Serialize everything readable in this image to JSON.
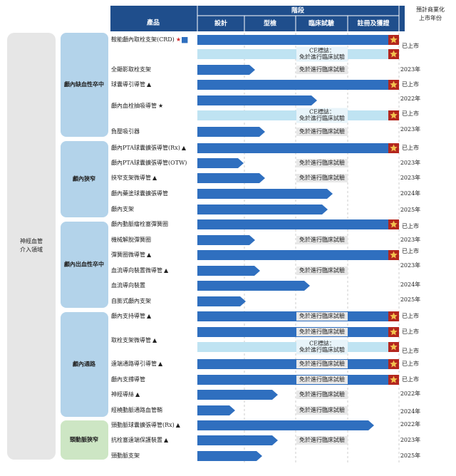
{
  "header": {
    "product": "產品",
    "stage": "階段",
    "stages": [
      "設計",
      "型檢",
      "臨床試驗",
      "註冊及獲證"
    ],
    "launch": "預計商業化上市年份"
  },
  "field": "神經血管介入領域",
  "categories": [
    "顱內缺血性卒中",
    "顱內狹窄",
    "顱內出血性卒中",
    "顱內通路",
    "頸動脈狹窄"
  ],
  "products": [
    {
      "name": "鞍能顱內取栓支架(CRD)",
      "marker": "★■",
      "notes": [
        [
          "CE標誌：",
          "免於進行臨床試驗"
        ]
      ],
      "years": [
        "已上市"
      ]
    },
    {
      "name": "全顯影取栓支架",
      "notes": [
        [
          "免於進行臨床試驗"
        ]
      ],
      "years": [
        "2023年"
      ]
    },
    {
      "name": "球囊導引導管",
      "marker": "▲",
      "years": [
        "已上市"
      ]
    },
    {
      "name": "顱內血栓抽吸導管",
      "marker": "★",
      "notes": [
        [
          "CE標誌：",
          "免於進行臨床試驗"
        ]
      ],
      "years": [
        "2022年",
        "已上市"
      ]
    },
    {
      "name": "負壓吸引器",
      "notes": [
        [
          "免於進行臨床試驗"
        ]
      ],
      "years": [
        "2023年"
      ]
    },
    {
      "name": "顱內PTA球囊擴張導管(Rx)",
      "marker": "▲",
      "years": [
        "已上市"
      ]
    },
    {
      "name": "顱內PTA球囊擴張導管(OTW)",
      "notes": [
        [
          "免於進行臨床試驗"
        ]
      ],
      "years": [
        "2023年"
      ]
    },
    {
      "name": "挾窄支架微導管",
      "marker": "▲",
      "notes": [
        [
          "免於進行臨床試驗"
        ]
      ],
      "years": [
        "2023年"
      ]
    },
    {
      "name": "顱內藥塗球囊擴張導管",
      "years": [
        "2024年"
      ]
    },
    {
      "name": "顱內支架",
      "years": [
        "2025年"
      ]
    },
    {
      "name": "顱內動脈瘤栓塞彈簧圈",
      "years": [
        "已上市"
      ]
    },
    {
      "name": "機械解脫彈簧圈",
      "notes": [
        [
          "免於進行臨床試驗"
        ]
      ],
      "years": [
        "2023年"
      ]
    },
    {
      "name": "彈簧圈微導管",
      "marker": "▲",
      "years": [
        "已上市"
      ]
    },
    {
      "name": "血流導向裝置微導管",
      "marker": "▲",
      "notes": [
        [
          "免於進行臨床試驗"
        ]
      ],
      "years": [
        "2023年"
      ]
    },
    {
      "name": "血流導向裝置",
      "years": [
        "2024年"
      ]
    },
    {
      "name": "自膨式顱內支架",
      "years": [
        "2025年"
      ]
    },
    {
      "name": "顱內支持導管",
      "marker": "▲",
      "notes": [
        [
          "免於進行臨床試驗"
        ]
      ],
      "years": [
        "已上市"
      ]
    },
    {
      "name": "取栓支架微導管",
      "marker": "▲",
      "notes": [
        [
          "免於進行臨床試驗"
        ],
        [
          "CE標誌：",
          "免於進行臨床試驗"
        ]
      ],
      "years": [
        "已上市",
        "已上市"
      ]
    },
    {
      "name": "遠端通路導引導管",
      "marker": "▲",
      "notes": [
        [
          "免於進行臨床試驗"
        ]
      ],
      "years": [
        "已上市"
      ]
    },
    {
      "name": "顱內支撐導管",
      "notes": [
        [
          "免於進行臨床試驗"
        ]
      ],
      "years": [
        "已上市"
      ]
    },
    {
      "name": "神經導絲",
      "marker": "▲",
      "notes": [
        [
          "免於進行臨床試驗"
        ]
      ],
      "years": [
        "2022年"
      ]
    },
    {
      "name": "經橈動脈通路血管鞘",
      "notes": [
        [
          "免於進行臨床試驗"
        ]
      ],
      "years": [
        "2024年"
      ]
    },
    {
      "name": "頸動脈球囊擴張導管(Rx)",
      "marker": "▲",
      "years": [
        "2022年"
      ]
    },
    {
      "name": "抗栓塞遠端保護裝置",
      "marker": "▲",
      "notes": [
        [
          "免於進行臨床試驗"
        ]
      ],
      "years": [
        "2023年"
      ]
    },
    {
      "name": "頸動脈支架",
      "years": [
        "2025年"
      ]
    }
  ]
}
